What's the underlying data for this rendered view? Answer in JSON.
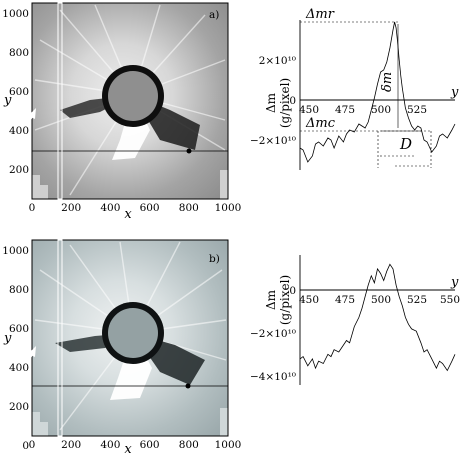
{
  "panels": {
    "a": {
      "label": "a)",
      "image": {
        "x_ticks": [
          "0",
          "200",
          "400",
          "600",
          "800",
          "1000"
        ],
        "y_ticks": [
          "1000",
          "800",
          "600",
          "400",
          "200"
        ],
        "x_label": "x",
        "y_label": "y",
        "background": "#8d8d8d"
      },
      "profile_plot": {
        "ylabel_top": "Δm",
        "ylabel_bottom": "(g/pixel)",
        "x_axis_label": "y",
        "x_ticks": [
          "450",
          "475",
          "500",
          "525",
          "550"
        ],
        "y_ticks": [
          "2×10¹⁰",
          "0",
          "−2×10¹⁰"
        ],
        "annotations": [
          "Δmr",
          "Δmc",
          "δm",
          "D"
        ]
      }
    },
    "b": {
      "label": "b)",
      "image": {
        "x_ticks": [
          "0",
          "200",
          "400",
          "600",
          "800",
          "1000"
        ],
        "y_ticks": [
          "1000",
          "800",
          "600",
          "400",
          "200",
          "0"
        ],
        "x_label": "x",
        "y_label": "y",
        "background": "#9aa8aa"
      },
      "profile_plot": {
        "ylabel_top": "Δm",
        "ylabel_bottom": "(g/pixel)",
        "x_axis_label": "y",
        "x_ticks": [
          "450",
          "475",
          "500",
          "525",
          "550"
        ],
        "y_ticks": [
          "0",
          "−2×10¹⁰",
          "−4×10¹⁰"
        ]
      }
    }
  },
  "chart_data": [
    {
      "type": "line",
      "panel": "a",
      "xlim": [
        450,
        550
      ],
      "ylim": [
        -35000000000.0,
        40000000000.0
      ],
      "x": [
        450,
        452,
        455,
        458,
        460,
        462,
        465,
        468,
        470,
        472,
        475,
        478,
        480,
        482,
        485,
        488,
        490,
        492,
        494,
        496,
        498,
        500,
        502,
        504,
        506,
        508,
        510,
        511,
        512,
        513,
        514,
        515,
        516,
        518,
        520,
        522,
        524,
        526,
        528,
        530,
        532,
        535,
        538,
        540,
        542,
        545,
        548,
        550
      ],
      "y": [
        -24000000000.0,
        -25000000000.0,
        -31000000000.0,
        -28000000000.0,
        -22000000000.0,
        -21000000000.0,
        -23000000000.0,
        -19000000000.0,
        -20000000000.0,
        -24000000000.0,
        -18000000000.0,
        -21000000000.0,
        -17000000000.0,
        -15000000000.0,
        -16000000000.0,
        -12000000000.0,
        -13000000000.0,
        -14000000000.0,
        -11000000000.0,
        -5000000000.0,
        1000000000.0,
        8000000000.0,
        14000000000.0,
        15000000000.0,
        19000000000.0,
        26000000000.0,
        35000000000.0,
        39000000000.0,
        36000000000.0,
        29000000000.0,
        20000000000.0,
        12000000000.0,
        6000000000.0,
        -4000000000.0,
        -9000000000.0,
        -13000000000.0,
        -15000000000.0,
        -13000000000.0,
        -14000000000.0,
        -20000000000.0,
        -21000000000.0,
        -26000000000.0,
        -23000000000.0,
        -18000000000.0,
        -17000000000.0,
        -19000000000.0,
        -15000000000.0,
        -12000000000.0
      ]
    },
    {
      "type": "line",
      "panel": "b",
      "xlim": [
        450,
        550
      ],
      "ylim": [
        -40000000000.0,
        12000000000.0
      ],
      "x": [
        450,
        452,
        455,
        458,
        460,
        462,
        465,
        468,
        470,
        472,
        475,
        478,
        480,
        482,
        485,
        488,
        490,
        492,
        494,
        496,
        498,
        500,
        502,
        504,
        506,
        508,
        510,
        512,
        514,
        516,
        518,
        520,
        522,
        525,
        528,
        530,
        532,
        535,
        538,
        540,
        542,
        545,
        548,
        550
      ],
      "y": [
        -30000000000.0,
        -29000000000.0,
        -33000000000.0,
        -30000000000.0,
        -34000000000.0,
        -31000000000.0,
        -32000000000.0,
        -28000000000.0,
        -29000000000.0,
        -26000000000.0,
        -27000000000.0,
        -24000000000.0,
        -22000000000.0,
        -23000000000.0,
        -16000000000.0,
        -12000000000.0,
        -8000000000.0,
        -3000000000.0,
        2000000000.0,
        6000000000.0,
        3000000000.0,
        9000000000.0,
        7000000000.0,
        4000000000.0,
        8000000000.0,
        11000000000.0,
        9000000000.0,
        2000000000.0,
        -3000000000.0,
        -7000000000.0,
        -12000000000.0,
        -15000000000.0,
        -17000000000.0,
        -18000000000.0,
        -23000000000.0,
        -27000000000.0,
        -26000000000.0,
        -30000000000.0,
        -34000000000.0,
        -31000000000.0,
        -32000000000.0,
        -35000000000.0,
        -31000000000.0,
        -28000000000.0
      ]
    }
  ]
}
